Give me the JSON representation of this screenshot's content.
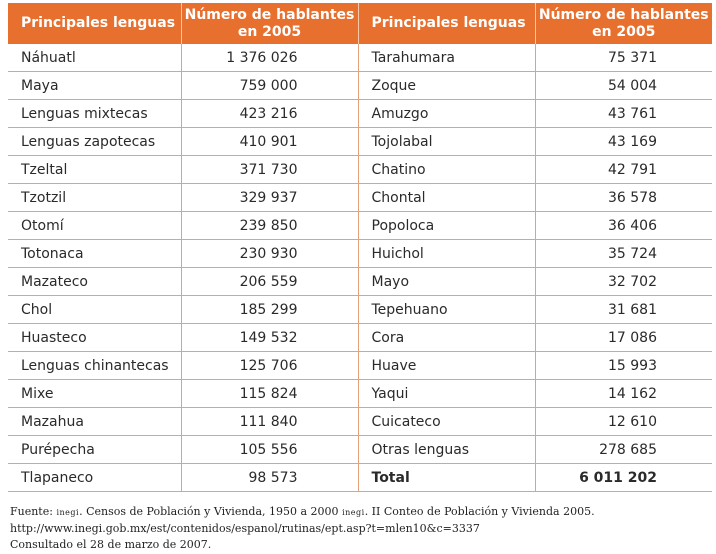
{
  "headers": {
    "lang_label": "Principales lenguas",
    "count_label_line1": "Número de hablantes",
    "count_label_line2": "en 2005"
  },
  "left_rows": [
    {
      "name": "Náhuatl",
      "count": "1 376 026"
    },
    {
      "name": "Maya",
      "count": "759 000"
    },
    {
      "name": "Lenguas mixtecas",
      "count": "423 216"
    },
    {
      "name": "Lenguas zapotecas",
      "count": "410 901"
    },
    {
      "name": "Tzeltal",
      "count": "371 730"
    },
    {
      "name": "Tzotzil",
      "count": "329 937"
    },
    {
      "name": "Otomí",
      "count": "239 850"
    },
    {
      "name": "Totonaca",
      "count": "230 930"
    },
    {
      "name": "Mazateco",
      "count": "206 559"
    },
    {
      "name": "Chol",
      "count": "185 299"
    },
    {
      "name": "Huasteco",
      "count": "149 532"
    },
    {
      "name": "Lenguas chinantecas",
      "count": "125 706"
    },
    {
      "name": "Mixe",
      "count": "115 824"
    },
    {
      "name": "Mazahua",
      "count": "111 840"
    },
    {
      "name": "Purépecha",
      "count": "105 556"
    },
    {
      "name": "Tlapaneco",
      "count": "98 573"
    }
  ],
  "right_rows": [
    {
      "name": "Tarahumara",
      "count": "75 371"
    },
    {
      "name": "Zoque",
      "count": "54 004"
    },
    {
      "name": "Amuzgo",
      "count": "43 761"
    },
    {
      "name": "Tojolabal",
      "count": "43 169"
    },
    {
      "name": "Chatino",
      "count": "42 791"
    },
    {
      "name": "Chontal",
      "count": "36 578"
    },
    {
      "name": "Popoloca",
      "count": "36 406"
    },
    {
      "name": "Huichol",
      "count": "35 724"
    },
    {
      "name": "Mayo",
      "count": "32 702"
    },
    {
      "name": "Tepehuano",
      "count": "31 681"
    },
    {
      "name": "Cora",
      "count": "17 086"
    },
    {
      "name": "Huave",
      "count": "15 993"
    },
    {
      "name": "Yaqui",
      "count": "14 162"
    },
    {
      "name": "Cuicateco",
      "count": "12 610"
    },
    {
      "name": "Otras lenguas",
      "count": "278 685"
    },
    {
      "name": "Total",
      "count": "6 011 202"
    }
  ],
  "source": {
    "prefix": "Fuente:",
    "org": "inegi",
    "text1": ". Censos de Población y Vivienda, 1950 a 2000",
    "text2": ". II Conteo de Población y Vivienda 2005.",
    "url": "http://www.inegi.gob.mx/est/contenidos/espanol/rutinas/ept.asp?t=mlen10&c=3337",
    "consulted": "Consultado el 28 de marzo de 2007."
  },
  "colors": {
    "header_bg": "#e8702e",
    "grid_line": "#e4a17a"
  }
}
